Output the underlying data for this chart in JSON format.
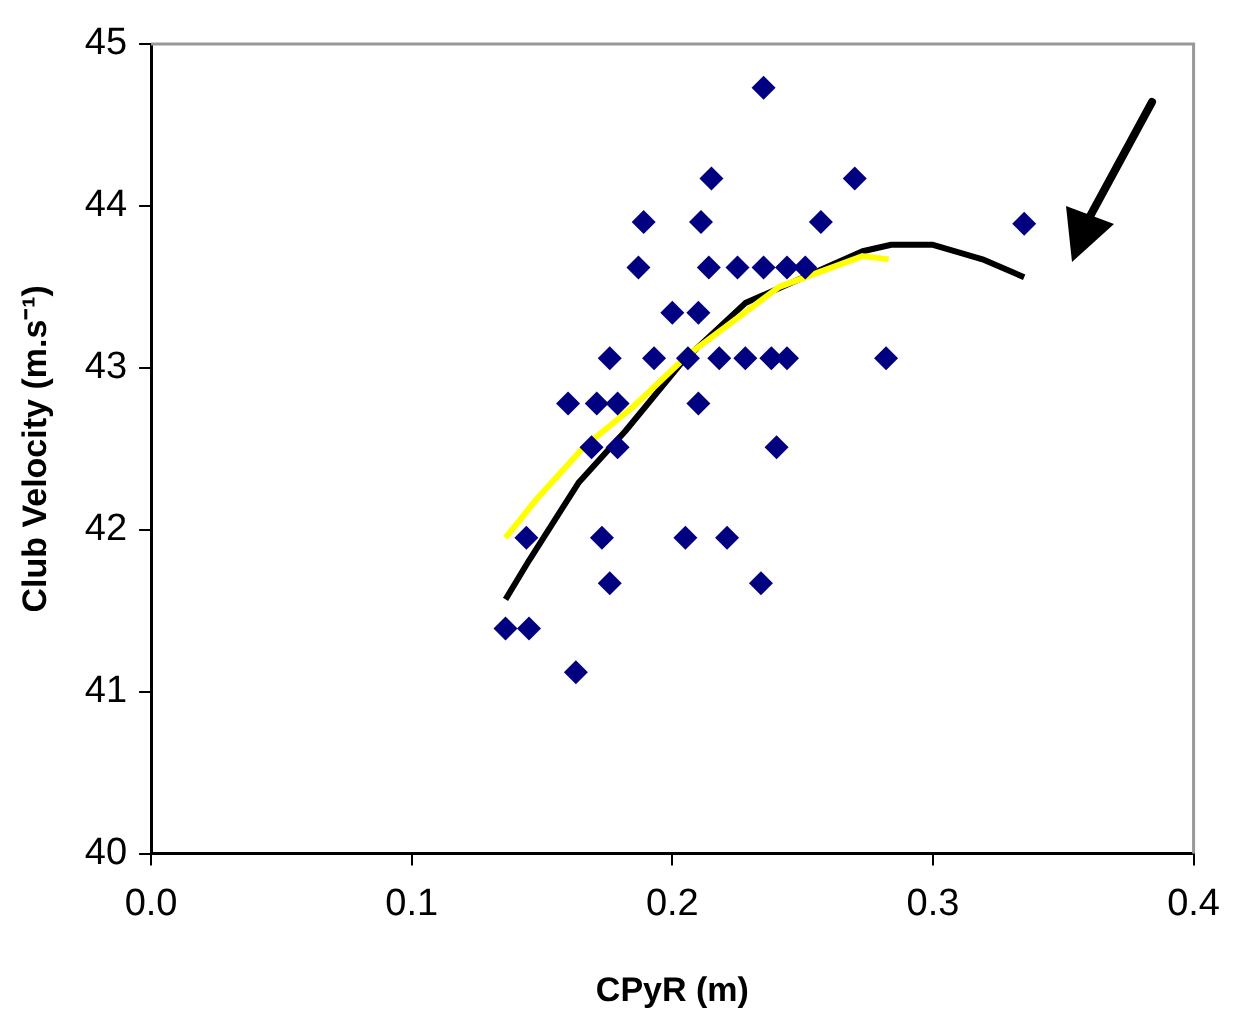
{
  "chart_data": {
    "type": "scatter",
    "xlabel": "CPyR (m)",
    "ylabel": "Club Velocity (m.s⁻¹)",
    "xlim": [
      0,
      0.4
    ],
    "xticks": [
      {
        "value": 0,
        "label": "0.0"
      },
      0.1,
      0.2,
      0.3,
      0.4
    ],
    "ylim": [
      40,
      45
    ],
    "yticks": [
      40,
      41,
      42,
      43,
      44,
      45
    ],
    "grid": false,
    "legend": false,
    "marker": "diamond",
    "series": [
      {
        "type": "scatter",
        "color": "#000080",
        "x": [
          0.136,
          0.145,
          0.163,
          0.144,
          0.173,
          0.176,
          0.205,
          0.221,
          0.234,
          0.24,
          0.169,
          0.179,
          0.16,
          0.171,
          0.179,
          0.21,
          0.176,
          0.193,
          0.206,
          0.218,
          0.228,
          0.238,
          0.244,
          0.282,
          0.2,
          0.21,
          0.187,
          0.214,
          0.225,
          0.235,
          0.244,
          0.251,
          0.189,
          0.211,
          0.257,
          0.215,
          0.27,
          0.235,
          0.335
        ],
        "values": [
          41.39,
          41.39,
          41.12,
          41.95,
          41.95,
          41.67,
          41.95,
          41.95,
          41.67,
          42.51,
          42.51,
          42.51,
          42.78,
          42.78,
          42.78,
          42.78,
          43.06,
          43.06,
          43.06,
          43.06,
          43.06,
          43.06,
          43.06,
          43.06,
          43.34,
          43.34,
          43.62,
          43.62,
          43.62,
          43.62,
          43.62,
          43.62,
          43.9,
          43.9,
          43.9,
          44.17,
          44.17,
          44.73,
          43.89
        ]
      },
      {
        "type": "line",
        "color": "#ffff00",
        "marker": "none",
        "x": [
          0.136,
          0.148,
          0.166,
          0.185,
          0.206,
          0.241,
          0.273,
          0.283
        ],
        "values": [
          41.95,
          42.19,
          42.51,
          42.76,
          43.08,
          43.5,
          43.69,
          43.67
        ]
      },
      {
        "type": "line",
        "color": "#000000",
        "marker": "none",
        "x": [
          0.136,
          0.145,
          0.164,
          0.182,
          0.204,
          0.228,
          0.273,
          0.284,
          0.3,
          0.319,
          0.335
        ],
        "values": [
          41.57,
          41.81,
          42.29,
          42.61,
          43.04,
          43.4,
          43.72,
          43.76,
          43.76,
          43.67,
          43.56
        ]
      }
    ]
  }
}
